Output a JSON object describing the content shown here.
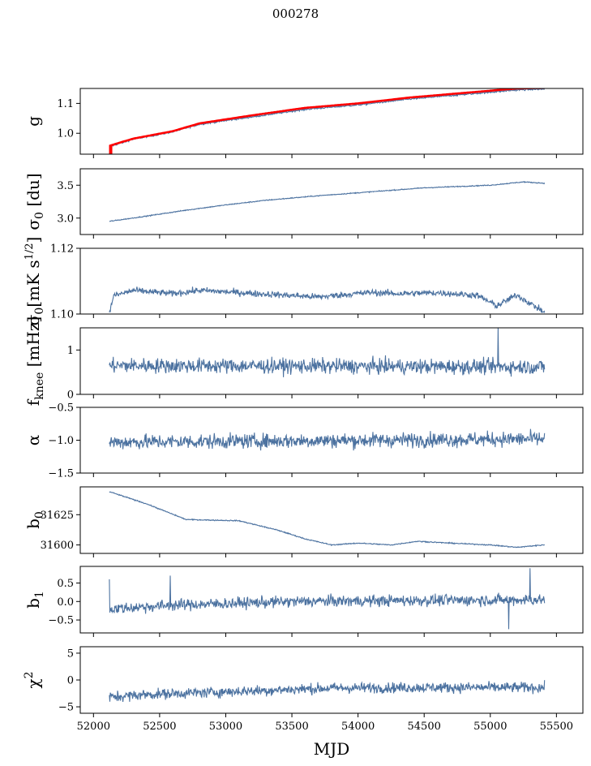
{
  "figure": {
    "title": "000278"
  },
  "chart_data": {
    "type": "line",
    "shared_x": {
      "label": "MJD",
      "lim": [
        51900,
        55700
      ],
      "ticks": [
        52000,
        52500,
        53000,
        53500,
        54000,
        54500,
        55000,
        55500
      ],
      "tick_labels": [
        "52000",
        "52500",
        "53000",
        "53500",
        "54000",
        "54500",
        "55000",
        "55500"
      ],
      "start": 52120,
      "end": 55410
    },
    "series_color": "#4c72a0",
    "overlay_color": "#ff0000",
    "panels": [
      {
        "ylabel": "g",
        "ylim": [
          0.93,
          1.15
        ],
        "ticks": [
          1.0,
          1.1
        ],
        "tick_labels": [
          "1.0",
          "1.1"
        ],
        "trend": [
          [
            52120,
            0.955
          ],
          [
            52300,
            0.98
          ],
          [
            52600,
            1.005
          ],
          [
            52800,
            1.03
          ],
          [
            53200,
            1.055
          ],
          [
            53600,
            1.08
          ],
          [
            54000,
            1.095
          ],
          [
            54400,
            1.115
          ],
          [
            54800,
            1.13
          ],
          [
            55200,
            1.145
          ],
          [
            55410,
            1.148
          ]
        ],
        "noise": 0.002,
        "overlay": {
          "trend": [
            [
              52120,
              0.958
            ],
            [
              52300,
              0.982
            ],
            [
              52600,
              1.007
            ],
            [
              52800,
              1.033
            ],
            [
              53200,
              1.06
            ],
            [
              53600,
              1.085
            ],
            [
              54000,
              1.1
            ],
            [
              54400,
              1.12
            ],
            [
              54800,
              1.135
            ],
            [
              55200,
              1.15
            ],
            [
              55410,
              1.152
            ]
          ],
          "spike": {
            "x": 52130,
            "y": [
              0.93,
              0.96
            ]
          }
        }
      },
      {
        "ylabel": "σ0 [du]",
        "ylim": [
          2.75,
          3.75
        ],
        "ticks": [
          3.0,
          3.5
        ],
        "tick_labels": [
          "3.0",
          "3.5"
        ],
        "trend": [
          [
            52120,
            2.95
          ],
          [
            52400,
            3.03
          ],
          [
            52700,
            3.12
          ],
          [
            53000,
            3.2
          ],
          [
            53300,
            3.27
          ],
          [
            53700,
            3.34
          ],
          [
            54100,
            3.4
          ],
          [
            54500,
            3.46
          ],
          [
            55000,
            3.5
          ],
          [
            55250,
            3.55
          ],
          [
            55410,
            3.53
          ]
        ],
        "noise": 0.005
      },
      {
        "ylabel": "σ0[mK s^1/2]",
        "ylim": [
          1.1,
          1.12
        ],
        "ticks": [
          1.1,
          1.12
        ],
        "tick_labels": [
          "1.10",
          "1.12"
        ],
        "trend": [
          [
            52120,
            1.1
          ],
          [
            52150,
            1.1055
          ],
          [
            52300,
            1.1072
          ],
          [
            52600,
            1.1062
          ],
          [
            52800,
            1.1072
          ],
          [
            53200,
            1.1063
          ],
          [
            53700,
            1.1052
          ],
          [
            54100,
            1.1066
          ],
          [
            54300,
            1.1062
          ],
          [
            54600,
            1.1065
          ],
          [
            54900,
            1.1057
          ],
          [
            55050,
            1.1025
          ],
          [
            55200,
            1.1058
          ],
          [
            55410,
            1.1005
          ]
        ],
        "noise": 0.0007
      },
      {
        "ylabel": "fknee [mHz]",
        "ylim": [
          0,
          1.5
        ],
        "ticks": [
          0,
          1
        ],
        "tick_labels": [
          "0",
          "1"
        ],
        "trend": [
          [
            52120,
            0.65
          ],
          [
            55410,
            0.62
          ]
        ],
        "noise": 0.12,
        "spike": {
          "x": 55060,
          "y": 1.5
        }
      },
      {
        "ylabel": "α",
        "ylim": [
          -1.5,
          -0.5
        ],
        "ticks": [
          -1.5,
          -1.0,
          -0.5
        ],
        "tick_labels": [
          "−1.5",
          "−1.0",
          "−0.5"
        ],
        "trend": [
          [
            52120,
            -1.03
          ],
          [
            55410,
            -0.98
          ]
        ],
        "noise": 0.08
      },
      {
        "ylabel": "b0",
        "ylim": [
          31593,
          31648
        ],
        "ticks": [
          31600,
          31625
        ],
        "tick_labels": [
          "31600",
          "31625"
        ],
        "trend": [
          [
            52120,
            31644
          ],
          [
            52400,
            31634
          ],
          [
            52700,
            31621
          ],
          [
            53100,
            31620
          ],
          [
            53400,
            31612
          ],
          [
            53600,
            31605
          ],
          [
            53800,
            31600
          ],
          [
            54000,
            31601.5
          ],
          [
            54250,
            31600
          ],
          [
            54450,
            31603
          ],
          [
            54700,
            31601.5
          ],
          [
            55000,
            31600
          ],
          [
            55200,
            31598
          ],
          [
            55400,
            31600
          ]
        ],
        "noise": 0.3
      },
      {
        "ylabel": "b1",
        "ylim": [
          -0.85,
          0.95
        ],
        "ticks": [
          -0.5,
          0.0,
          0.5
        ],
        "tick_labels": [
          "−0.5",
          "0.0",
          "0.5"
        ],
        "trend": [
          [
            52120,
            -0.2
          ],
          [
            52600,
            -0.1
          ],
          [
            53500,
            0.0
          ],
          [
            54500,
            0.03
          ],
          [
            55410,
            0.05
          ]
        ],
        "noise": 0.11,
        "spikes": [
          {
            "x": 52120,
            "y": 0.6
          },
          {
            "x": 52580,
            "y": 0.7
          },
          {
            "x": 55300,
            "y": 0.9
          },
          {
            "x": 55140,
            "y": -0.75
          }
        ]
      },
      {
        "ylabel": "χ²",
        "ylim": [
          -6.2,
          6.2
        ],
        "ticks": [
          -5,
          0,
          5
        ],
        "tick_labels": [
          "−5",
          "0",
          "5"
        ],
        "trend": [
          [
            52120,
            -3.2
          ],
          [
            52400,
            -2.7
          ],
          [
            53000,
            -2.2
          ],
          [
            53800,
            -1.5
          ],
          [
            54500,
            -1.4
          ],
          [
            55410,
            -1.4
          ]
        ],
        "noise": 0.7
      }
    ]
  }
}
